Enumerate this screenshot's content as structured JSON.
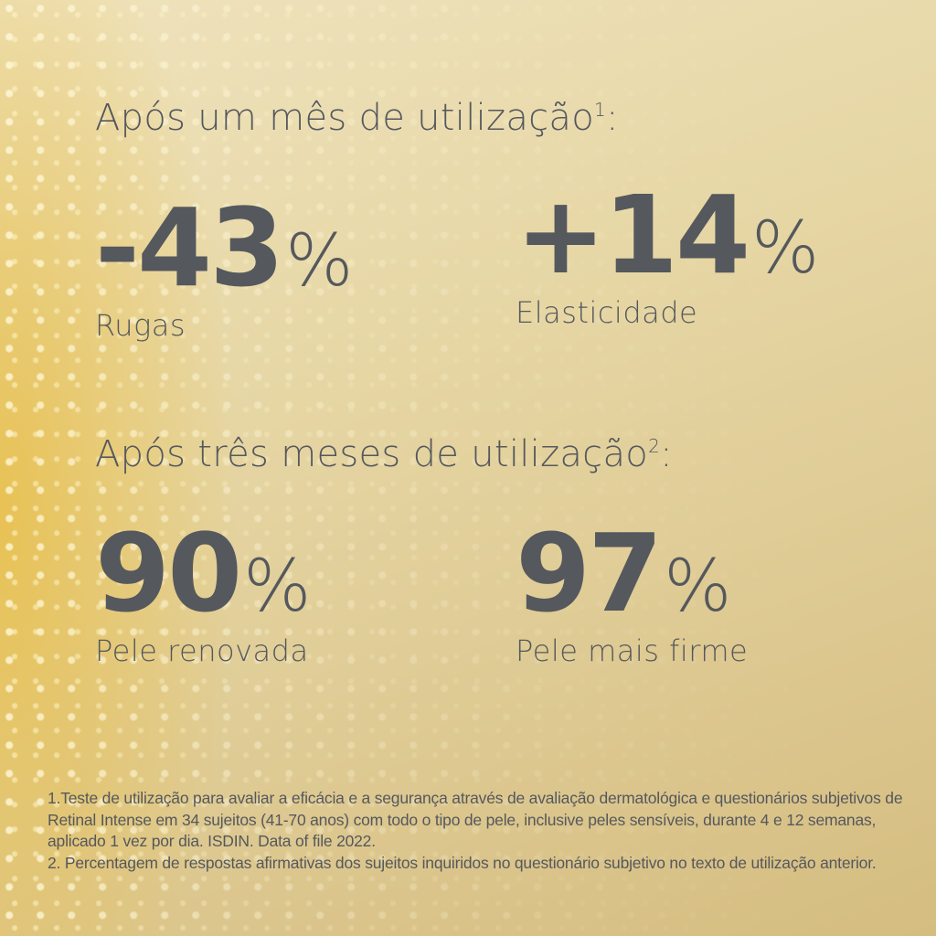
{
  "section1": {
    "heading": "Após um mês de utilização",
    "footnote_ref": "1",
    "suffix": ":",
    "stats": [
      {
        "value": "-43",
        "unit": "%",
        "label": "Rugas"
      },
      {
        "value": "+14",
        "unit": "%",
        "label": "Elasticidade"
      }
    ]
  },
  "section2": {
    "heading": "Após três meses de utilização",
    "footnote_ref": "2",
    "suffix": ":",
    "stats": [
      {
        "value": "90",
        "unit": "%",
        "label": "Pele renovada"
      },
      {
        "value": "97",
        "unit": "%",
        "label": "Pele mais firme"
      }
    ]
  },
  "footnotes": [
    "1.Teste de utilização para avaliar a eficácia e a segurança através de avaliação dermatológica e questionários subjetivos de Retinal Intense em 34 sujeitos (41-70 anos) com todo o tipo de pele, inclusive peles sensíveis, durante 4 e 12 semanas, aplicado 1 vez por dia. ISDIN. Data of file 2022.",
    "2. Percentagem de respostas afirmativas dos sujeitos inquiridos no questionário subjetivo no texto de utilização anterior."
  ],
  "colors": {
    "text": "#55585d",
    "background": "#e6d6a4",
    "accent": "#e8be46"
  }
}
